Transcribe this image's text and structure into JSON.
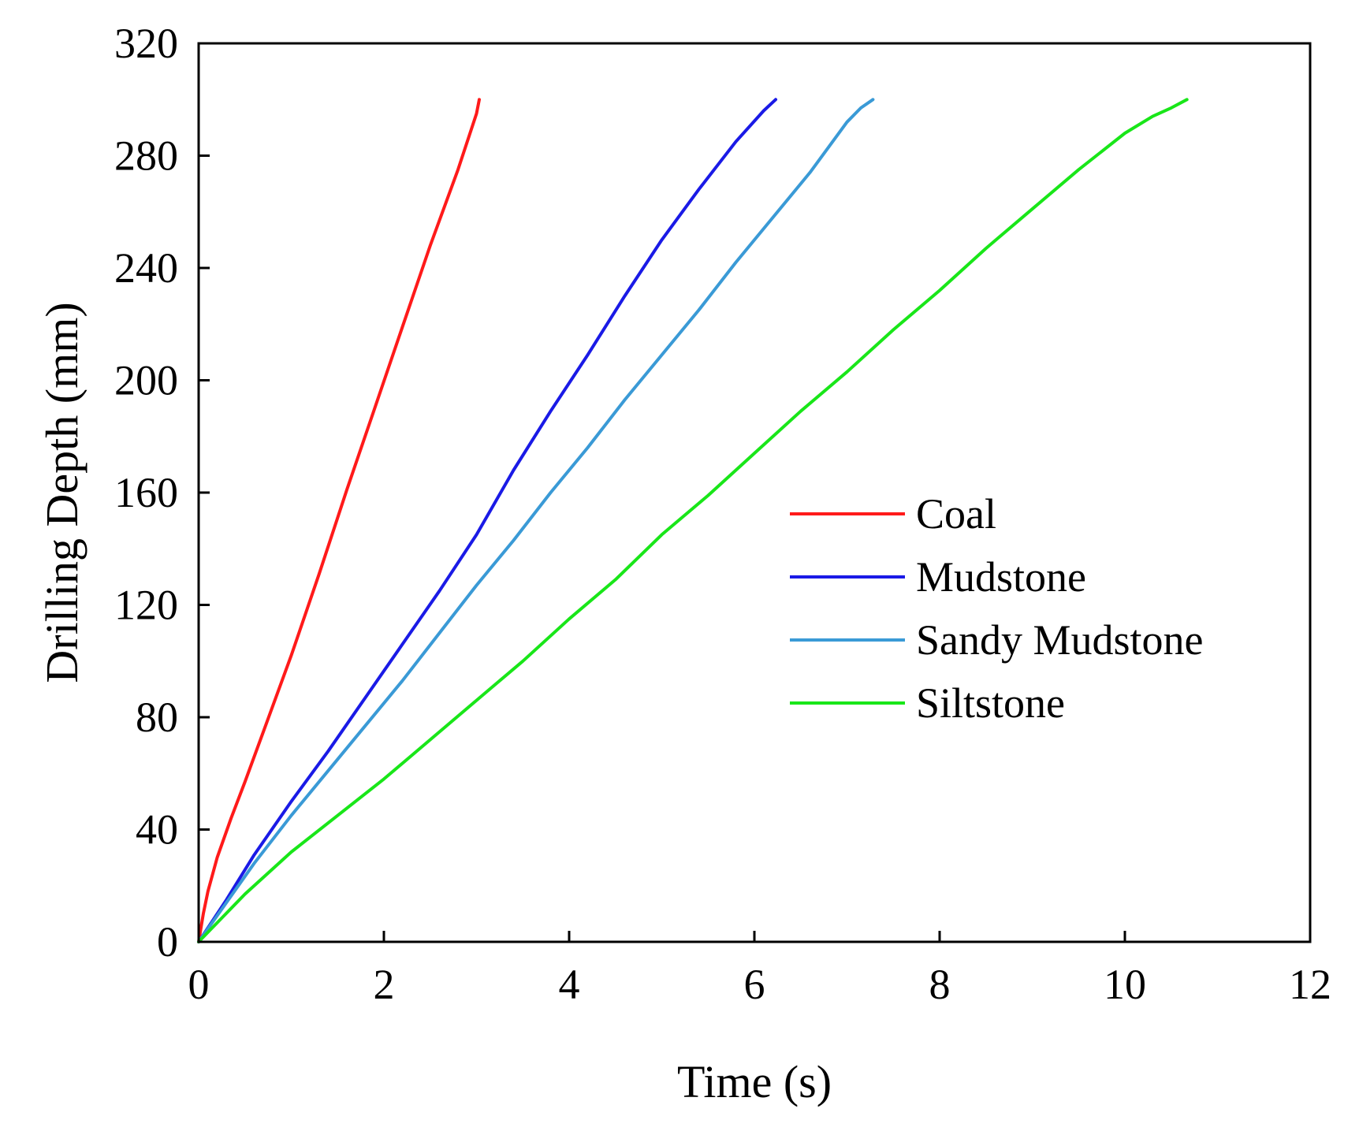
{
  "chart_data": {
    "type": "line",
    "title": "",
    "xlabel": "Time (s)",
    "ylabel": "Drilling Depth (mm)",
    "xlim": [
      0,
      12
    ],
    "ylim": [
      0,
      320
    ],
    "xticks": [
      0,
      2,
      4,
      6,
      8,
      10,
      12
    ],
    "yticks": [
      0,
      40,
      80,
      120,
      160,
      200,
      240,
      280,
      320
    ],
    "grid": false,
    "legend_position": "center-right",
    "series": [
      {
        "name": "Coal",
        "color": "#ff1a1a",
        "x": [
          0,
          0.05,
          0.1,
          0.2,
          0.35,
          0.5,
          0.7,
          1.0,
          1.3,
          1.6,
          1.9,
          2.2,
          2.5,
          2.8,
          3.0,
          3.03
        ],
        "y": [
          0,
          10,
          18,
          30,
          44,
          57,
          75,
          102,
          131,
          161,
          190,
          219,
          248,
          275,
          295,
          300
        ]
      },
      {
        "name": "Mudstone",
        "color": "#1a1ae6",
        "x": [
          0,
          0.3,
          0.6,
          1.0,
          1.4,
          1.8,
          2.2,
          2.6,
          3.0,
          3.4,
          3.8,
          4.2,
          4.6,
          5.0,
          5.4,
          5.8,
          6.1,
          6.23
        ],
        "y": [
          0,
          15,
          31,
          50,
          68,
          87,
          106,
          125,
          145,
          168,
          189,
          209,
          230,
          250,
          268,
          285,
          296,
          300
        ]
      },
      {
        "name": "Sandy Mudstone",
        "color": "#3a9ad6",
        "x": [
          0,
          0.3,
          0.6,
          1.0,
          1.4,
          1.8,
          2.2,
          2.6,
          3.0,
          3.4,
          3.8,
          4.2,
          4.6,
          5.0,
          5.4,
          5.8,
          6.2,
          6.6,
          7.0,
          7.15,
          7.28
        ],
        "y": [
          0,
          14,
          28,
          45,
          61,
          77,
          93,
          110,
          127,
          143,
          160,
          176,
          193,
          209,
          225,
          242,
          258,
          274,
          292,
          297,
          300
        ]
      },
      {
        "name": "Siltstone",
        "color": "#19e619",
        "x": [
          0,
          0.5,
          1.0,
          1.5,
          2.0,
          2.5,
          3.0,
          3.5,
          4.0,
          4.5,
          5.0,
          5.5,
          6.0,
          6.5,
          7.0,
          7.5,
          8.0,
          8.5,
          9.0,
          9.5,
          10.0,
          10.3,
          10.5,
          10.67
        ],
        "y": [
          0,
          17,
          32,
          45,
          58,
          72,
          86,
          100,
          115,
          129,
          145,
          159,
          174,
          189,
          203,
          218,
          232,
          247,
          261,
          275,
          288,
          294,
          297,
          300
        ]
      }
    ]
  }
}
